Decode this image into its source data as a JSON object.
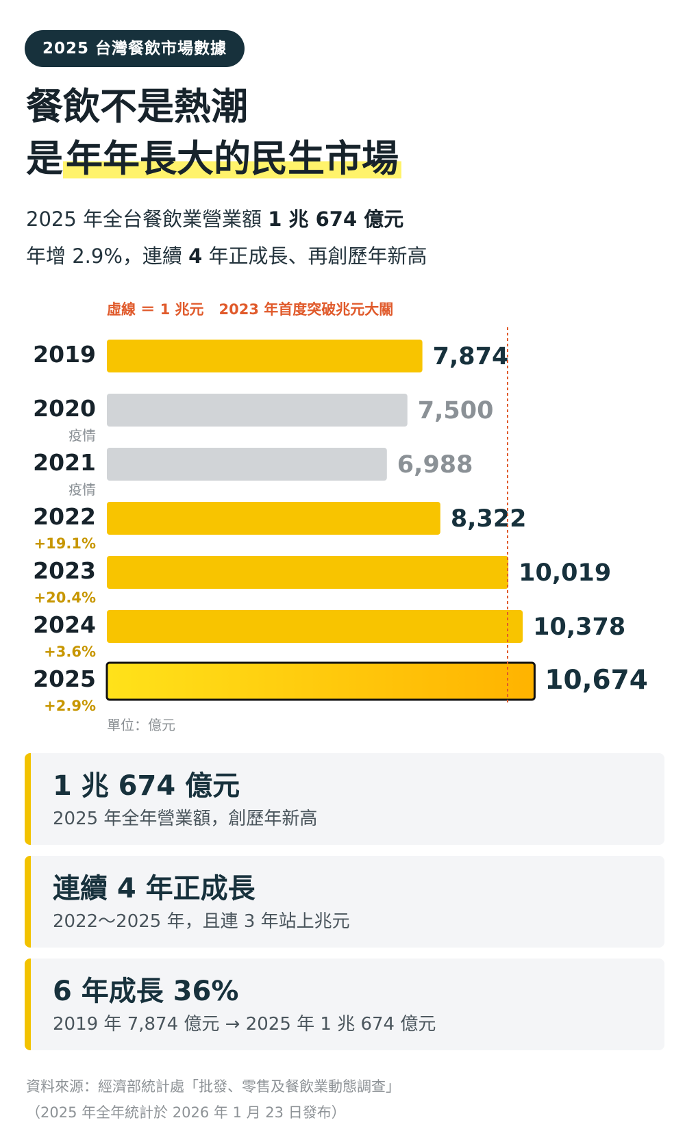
{
  "badge": "2025 台灣餐飲市場數據",
  "headline": {
    "line1": "餐飲不是熱潮",
    "line2_prefix": "是",
    "line2_highlight": "年年長大的民生市場"
  },
  "subtitle": {
    "line1_prefix": "2025 年全台餐飲業營業額 ",
    "line1_bold": "1 兆 674 億元",
    "line2_prefix": "年增 2.9%，連續 ",
    "line2_bold": "4",
    "line2_suffix": " 年正成長、再創歷年新高"
  },
  "chart_note": {
    "dashed": "虛線 ＝ 1 兆元",
    "milestone": "2023 年首度突破兆元大關"
  },
  "chart_data": {
    "type": "bar",
    "orientation": "horizontal",
    "categories": [
      "2019",
      "2020",
      "2021",
      "2022",
      "2023",
      "2024",
      "2025"
    ],
    "values": [
      7874,
      7500,
      6988,
      8322,
      10019,
      10378,
      10674
    ],
    "value_labels": [
      "7,874",
      "7,500",
      "6,988",
      "8,322",
      "10,019",
      "10,378",
      "10,674"
    ],
    "sublabels": [
      "",
      "疫情",
      "疫情",
      "+19.1%",
      "+20.4%",
      "+3.6%",
      "+2.9%"
    ],
    "status": [
      "normal",
      "covid",
      "covid",
      "normal",
      "normal",
      "normal",
      "highlight"
    ],
    "reference_line": 10000,
    "unit": "單位：億元",
    "colors": {
      "normal": "#f8c400",
      "covid": "#d1d4d7",
      "highlight_start": "#ffe21a",
      "highlight_end": "#ffb300",
      "label_dark": "#17313c",
      "label_grey": "#8b9196",
      "growth": "#c79600",
      "sub_grey": "#8b9196",
      "ref_line": "#e05a2b"
    },
    "grid": false,
    "legend": "none"
  },
  "cards": [
    {
      "title": "1 兆 674 億元",
      "subtitle": "2025 年全年營業額，創歷年新高"
    },
    {
      "title": "連續 4 年正成長",
      "subtitle": "2022～2025 年，且連 3 年站上兆元"
    },
    {
      "title": "6 年成長 36%",
      "subtitle": "2019 年 7,874 億元 → 2025 年 1 兆 674 億元"
    }
  ],
  "source": {
    "line1": "資料來源：經濟部統計處「批發、零售及餐飲業動態調查」",
    "line2": "（2025 年全年統計於 2026 年 1 月 23 日發布）"
  }
}
